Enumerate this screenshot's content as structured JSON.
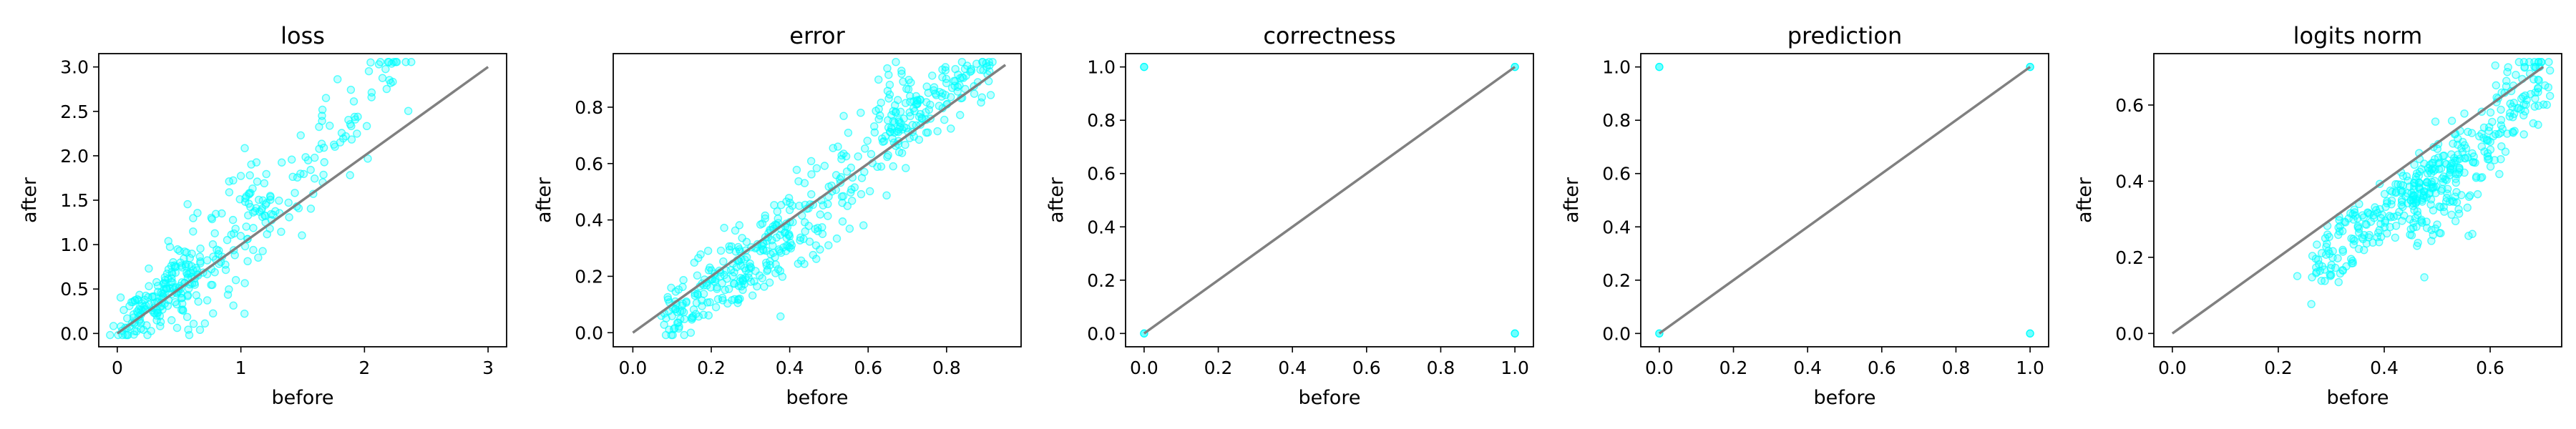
{
  "figure": {
    "background": "#ffffff",
    "point_color": "#00ffff",
    "diagonal_color": "#808080"
  },
  "chart_data": [
    {
      "type": "scatter",
      "title": "loss",
      "xlabel": "before",
      "ylabel": "after",
      "xlim": [
        -0.15,
        3.15
      ],
      "ylim": [
        -0.15,
        3.15
      ],
      "xticks": [
        "0",
        "1",
        "2",
        "3"
      ],
      "yticks": [
        "0.0",
        "0.5",
        "1.0",
        "1.5",
        "2.0",
        "2.5",
        "3.0"
      ],
      "diagonal": [
        0,
        3
      ],
      "scatter_clusters": [
        {
          "n": 160,
          "x": [
            0.05,
            0.6
          ],
          "y": [
            0.02,
            0.75
          ],
          "spread": 0.18
        },
        {
          "n": 110,
          "x": [
            0.5,
            1.2
          ],
          "y": [
            0.4,
            1.6
          ],
          "spread": 0.28
        },
        {
          "n": 90,
          "x": [
            1.1,
            2.3
          ],
          "y": [
            1.2,
            3.0
          ],
          "spread": 0.3
        }
      ]
    },
    {
      "type": "scatter",
      "title": "error",
      "xlabel": "before",
      "ylabel": "after",
      "xlim": [
        -0.05,
        0.99
      ],
      "ylim": [
        -0.05,
        0.99
      ],
      "xticks": [
        "0.0",
        "0.2",
        "0.4",
        "0.6",
        "0.8"
      ],
      "yticks": [
        "0.0",
        "0.2",
        "0.4",
        "0.6",
        "0.8"
      ],
      "diagonal": [
        0,
        0.95
      ],
      "scatter_clusters": [
        {
          "n": 220,
          "x": [
            0.08,
            0.4
          ],
          "y": [
            0.04,
            0.35
          ],
          "spread": 0.06
        },
        {
          "n": 150,
          "x": [
            0.35,
            0.7
          ],
          "y": [
            0.25,
            0.8
          ],
          "spread": 0.1
        },
        {
          "n": 120,
          "x": [
            0.65,
            0.92
          ],
          "y": [
            0.7,
            0.96
          ],
          "spread": 0.05
        }
      ]
    },
    {
      "type": "scatter",
      "title": "correctness",
      "xlabel": "before",
      "ylabel": "after",
      "xlim": [
        -0.05,
        1.05
      ],
      "ylim": [
        -0.05,
        1.05
      ],
      "xticks": [
        "0.0",
        "0.2",
        "0.4",
        "0.6",
        "0.8",
        "1.0"
      ],
      "yticks": [
        "0.0",
        "0.2",
        "0.4",
        "0.6",
        "0.8",
        "1.0"
      ],
      "diagonal": [
        0,
        1
      ],
      "points": [
        [
          0,
          0
        ],
        [
          0,
          1
        ],
        [
          1,
          0
        ],
        [
          1,
          1
        ]
      ]
    },
    {
      "type": "scatter",
      "title": "prediction",
      "xlabel": "before",
      "ylabel": "after",
      "xlim": [
        -0.05,
        1.05
      ],
      "ylim": [
        -0.05,
        1.05
      ],
      "xticks": [
        "0.0",
        "0.2",
        "0.4",
        "0.6",
        "0.8",
        "1.0"
      ],
      "yticks": [
        "0.0",
        "0.2",
        "0.4",
        "0.6",
        "0.8",
        "1.0"
      ],
      "diagonal": [
        0,
        1
      ],
      "points": [
        [
          0,
          0
        ],
        [
          0,
          1
        ],
        [
          1,
          0
        ],
        [
          1,
          1
        ]
      ]
    },
    {
      "type": "scatter",
      "title": "logits norm",
      "xlabel": "before",
      "ylabel": "after",
      "xlim": [
        -0.035,
        0.735
      ],
      "ylim": [
        -0.035,
        0.735
      ],
      "xticks": [
        "0.0",
        "0.2",
        "0.4",
        "0.6"
      ],
      "yticks": [
        "0.0",
        "0.2",
        "0.4",
        "0.6"
      ],
      "diagonal": [
        0,
        0.7
      ],
      "scatter_clusters": [
        {
          "n": 200,
          "x": [
            0.27,
            0.5
          ],
          "y": [
            0.18,
            0.42
          ],
          "spread": 0.04
        },
        {
          "n": 250,
          "x": [
            0.45,
            0.7
          ],
          "y": [
            0.3,
            0.68
          ],
          "spread": 0.06
        }
      ]
    }
  ]
}
